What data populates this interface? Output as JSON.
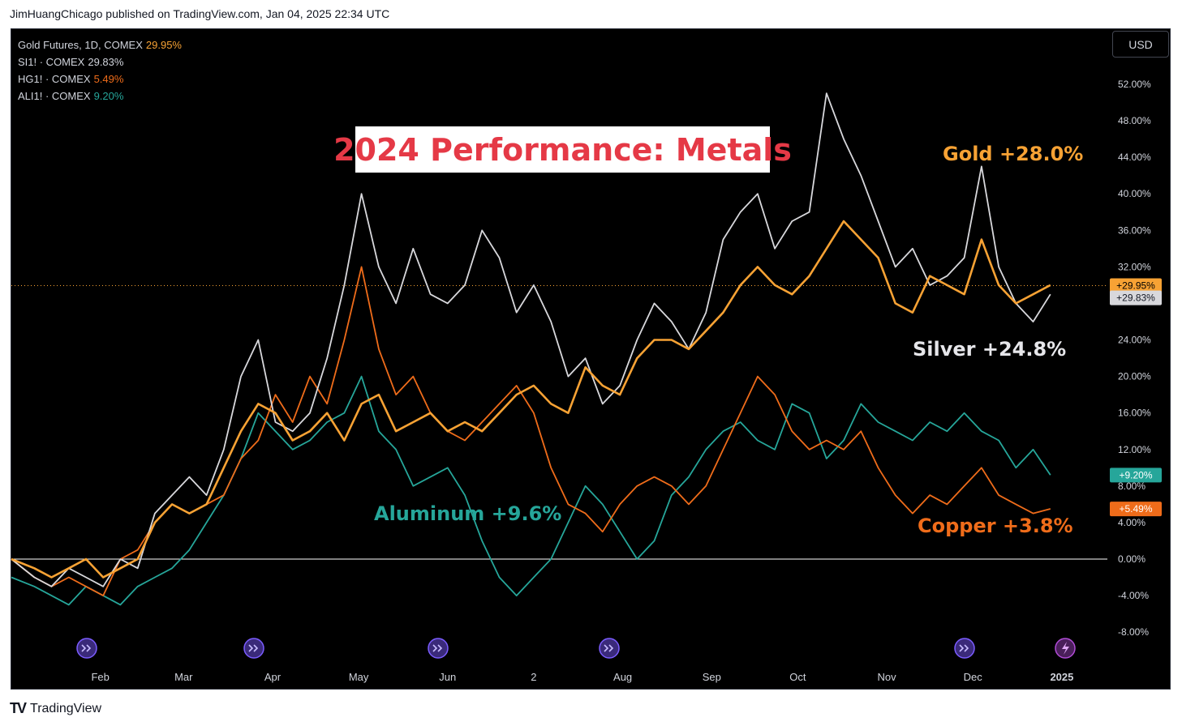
{
  "header": {
    "published_by": "JimHuangChicago published on TradingView.com, Jan 04, 2025 22:34 UTC"
  },
  "legend": [
    {
      "label": "Gold Futures, 1D, COMEX",
      "value": "29.95%",
      "color": "#f7a234"
    },
    {
      "label": "SI1! · COMEX",
      "value": "29.83%",
      "color": "#d1d4dc"
    },
    {
      "label": "HG1! · COMEX",
      "value": "5.49%",
      "color": "#ef6c1a"
    },
    {
      "label": "ALI1! · COMEX",
      "value": "9.20%",
      "color": "#26a69a"
    }
  ],
  "title": "2024 Performance: Metals",
  "currency_button": "USD",
  "annotations": {
    "gold": "Gold +28.0%",
    "silver": "Silver +24.8%",
    "aluminum": "Aluminum +9.6%",
    "copper": "Copper +3.8%"
  },
  "footer": {
    "brand": "TradingView",
    "logo_mark": "TV"
  },
  "colors": {
    "gold": "#f7a234",
    "silver": "#d8d8dc",
    "copper": "#ef6c1a",
    "aluminum": "#26a69a",
    "event_icon": "#7b5cff"
  },
  "chart_data": {
    "type": "line",
    "x_labels": [
      "Feb",
      "Mar",
      "Apr",
      "May",
      "Jun",
      "2",
      "Aug",
      "Sep",
      "Oct",
      "Nov",
      "Dec",
      "2025"
    ],
    "y_ticks": [
      "52.00%",
      "48.00%",
      "44.00%",
      "40.00%",
      "36.00%",
      "32.00%",
      "24.00%",
      "20.00%",
      "16.00%",
      "12.00%",
      "8.00%",
      "4.00%",
      "0.00%",
      "-4.00%",
      "-8.00%"
    ],
    "ylim": [
      -10,
      56
    ],
    "x_range_days": [
      0,
      368
    ],
    "current_price_tags": [
      {
        "series": "gold",
        "label": "+29.95%",
        "value": 29.95
      },
      {
        "series": "silver",
        "label": "+29.83%",
        "value": 28.6
      },
      {
        "series": "aluminum",
        "label": "+9.20%",
        "value": 9.2
      },
      {
        "series": "copper",
        "label": "+5.49%",
        "value": 5.49
      }
    ],
    "series": [
      {
        "name": "Gold Futures, 1D, COMEX",
        "key": "gold",
        "x": [
          0,
          8,
          14,
          20,
          26,
          32,
          38,
          44,
          50,
          56,
          62,
          68,
          74,
          80,
          86,
          92,
          98,
          104,
          110,
          116,
          122,
          128,
          134,
          140,
          146,
          152,
          158,
          164,
          170,
          176,
          182,
          188,
          194,
          200,
          206,
          212,
          218,
          224,
          230,
          236,
          242,
          248,
          254,
          260,
          266,
          272,
          278,
          284,
          290,
          296,
          302,
          308,
          314,
          320,
          326,
          332,
          338,
          344,
          350,
          356,
          362
        ],
        "values": [
          0,
          -1,
          -2,
          -1,
          0,
          -2,
          -1,
          0,
          4,
          6,
          5,
          6,
          10,
          14,
          17,
          16,
          13,
          14,
          16,
          13,
          17,
          18,
          14,
          15,
          16,
          14,
          15,
          14,
          16,
          18,
          19,
          17,
          16,
          21,
          19,
          18,
          22,
          24,
          24,
          23,
          25,
          27,
          30,
          32,
          30,
          29,
          31,
          34,
          37,
          35,
          33,
          28,
          27,
          31,
          30,
          29,
          35,
          30,
          28,
          29,
          30
        ]
      },
      {
        "name": "SI1! · COMEX",
        "key": "silver",
        "x": [
          0,
          8,
          14,
          20,
          26,
          32,
          38,
          44,
          50,
          56,
          62,
          68,
          74,
          80,
          86,
          92,
          98,
          104,
          110,
          116,
          122,
          128,
          134,
          140,
          146,
          152,
          158,
          164,
          170,
          176,
          182,
          188,
          194,
          200,
          206,
          212,
          218,
          224,
          230,
          236,
          242,
          248,
          254,
          260,
          266,
          272,
          278,
          284,
          290,
          296,
          302,
          308,
          314,
          320,
          326,
          332,
          338,
          344,
          350,
          356,
          362
        ],
        "values": [
          0,
          -2,
          -3,
          -1,
          -2,
          -3,
          0,
          -1,
          5,
          7,
          9,
          7,
          12,
          20,
          24,
          15,
          14,
          16,
          22,
          30,
          40,
          32,
          28,
          34,
          29,
          28,
          30,
          36,
          33,
          27,
          30,
          26,
          20,
          22,
          17,
          19,
          24,
          28,
          26,
          23,
          27,
          35,
          38,
          40,
          34,
          37,
          38,
          51,
          46,
          42,
          37,
          32,
          34,
          30,
          31,
          33,
          43,
          32,
          28,
          26,
          29
        ]
      },
      {
        "name": "HG1! · COMEX",
        "key": "copper",
        "x": [
          0,
          8,
          14,
          20,
          26,
          32,
          38,
          44,
          50,
          56,
          62,
          68,
          74,
          80,
          86,
          92,
          98,
          104,
          110,
          116,
          122,
          128,
          134,
          140,
          146,
          152,
          158,
          164,
          170,
          176,
          182,
          188,
          194,
          200,
          206,
          212,
          218,
          224,
          230,
          236,
          242,
          248,
          254,
          260,
          266,
          272,
          278,
          284,
          290,
          296,
          302,
          308,
          314,
          320,
          326,
          332,
          338,
          344,
          350,
          356,
          362
        ],
        "values": [
          0,
          -2,
          -3,
          -2,
          -3,
          -4,
          0,
          1,
          4,
          6,
          5,
          6,
          7,
          11,
          13,
          18,
          15,
          20,
          17,
          24,
          32,
          23,
          18,
          20,
          16,
          14,
          13,
          15,
          17,
          19,
          16,
          10,
          6,
          5,
          3,
          6,
          8,
          9,
          8,
          6,
          8,
          12,
          16,
          20,
          18,
          14,
          12,
          13,
          12,
          14,
          10,
          7,
          5,
          7,
          6,
          8,
          10,
          7,
          6,
          5,
          5.5
        ]
      },
      {
        "name": "ALI1! · COMEX",
        "key": "aluminum",
        "x": [
          0,
          8,
          14,
          20,
          26,
          32,
          38,
          44,
          50,
          56,
          62,
          68,
          74,
          80,
          86,
          92,
          98,
          104,
          110,
          116,
          122,
          128,
          134,
          140,
          146,
          152,
          158,
          164,
          170,
          176,
          182,
          188,
          194,
          200,
          206,
          212,
          218,
          224,
          230,
          236,
          242,
          248,
          254,
          260,
          266,
          272,
          278,
          284,
          290,
          296,
          302,
          308,
          314,
          320,
          326,
          332,
          338,
          344,
          350,
          356,
          362
        ],
        "values": [
          -2,
          -3,
          -4,
          -5,
          -3,
          -4,
          -5,
          -3,
          -2,
          -1,
          1,
          4,
          7,
          11,
          16,
          14,
          12,
          13,
          15,
          16,
          20,
          14,
          12,
          8,
          9,
          10,
          7,
          2,
          -2,
          -4,
          -2,
          0,
          4,
          8,
          6,
          3,
          0,
          2,
          7,
          9,
          12,
          14,
          15,
          13,
          12,
          17,
          16,
          11,
          13,
          17,
          15,
          14,
          13,
          15,
          14,
          16,
          14,
          13,
          10,
          12,
          9.2
        ]
      }
    ]
  }
}
